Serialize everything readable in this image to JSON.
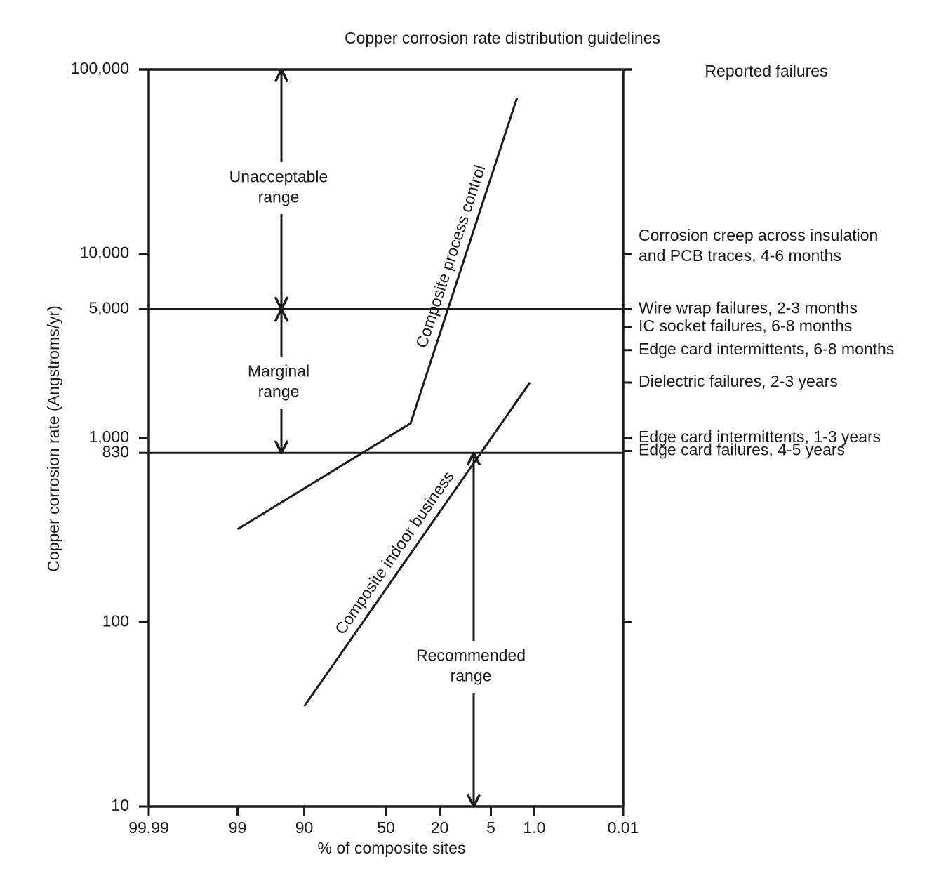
{
  "chart_data": {
    "type": "line",
    "title": "Copper corrosion rate distribution guidelines",
    "x_label": "% of composite sites",
    "y_label": "Copper corrosion rate (Angstroms/yr)",
    "y2_label": "Reported failures",
    "x_scale": "probability",
    "y_scale": "log",
    "xlim": [
      99.99,
      0.01
    ],
    "ylim": [
      10,
      100000
    ],
    "xticks": [
      99.99,
      99,
      90,
      50,
      20,
      5,
      {
        "value": 1,
        "label": "1.0"
      },
      0.01
    ],
    "yticks": [
      {
        "value": 100000,
        "label": "100,000"
      },
      {
        "value": 10000,
        "label": "10,000"
      },
      {
        "value": 5000,
        "label": "5,000"
      },
      {
        "value": 1000,
        "label": "1,000"
      },
      830,
      100,
      10
    ],
    "color": "#1a1a1a",
    "series": [
      {
        "name": "Composite process control",
        "color": "#1a1a1a",
        "x": [
          99,
          35,
          2
        ],
        "values": [
          320,
          1200,
          70000
        ]
      },
      {
        "name": "Composite indoor business",
        "color": "#1a1a1a",
        "x": [
          90,
          1.2
        ],
        "values": [
          35,
          2000
        ]
      }
    ],
    "hlines": [
      5000,
      830
    ],
    "ranges": [
      {
        "label": [
          "Unacceptable",
          "range"
        ],
        "from": 5000,
        "to": 100000
      },
      {
        "label": [
          "Marginal",
          "range"
        ],
        "from": 830,
        "to": 5000
      },
      {
        "label": [
          "Recommended",
          "range"
        ],
        "from": 10,
        "to": 830
      }
    ],
    "failures": [
      {
        "label": [
          "Corrosion creep across insulation",
          "and PCB traces, 4-6 months"
        ],
        "value": 10000
      },
      {
        "label": [
          "Wire wrap failures, 2-3 months"
        ],
        "value": 5000
      },
      {
        "label": [
          "IC socket failures, 6-8 months"
        ],
        "value": 4000
      },
      {
        "label": [
          "Edge card intermittents, 6-8 months"
        ],
        "value": 3000
      },
      {
        "label": [
          "Dielectric failures, 2-3 years"
        ],
        "value": 2000
      },
      {
        "label": [
          "Edge card intermittents, 1-3 years"
        ],
        "value": 1000
      },
      {
        "label": [
          "Edge card failures, 4-5 years"
        ],
        "value": 850
      }
    ]
  }
}
